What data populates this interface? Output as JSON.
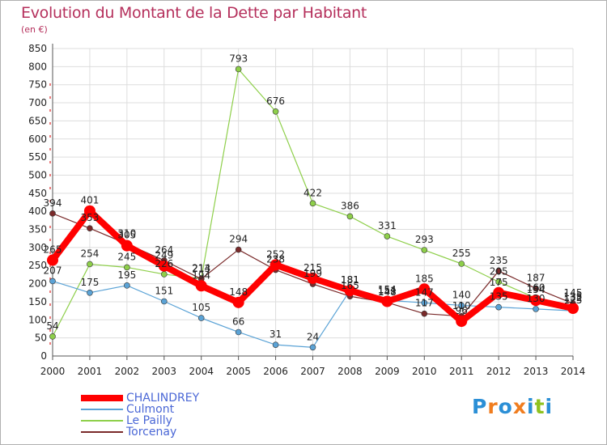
{
  "title": "Evolution du Montant de la Dette par Habitant",
  "unit": "(en €)",
  "brand": {
    "text": "Proxiti",
    "letters": [
      "P",
      "r",
      "o",
      "x",
      "i",
      "t",
      "i"
    ],
    "colors": [
      "#2b8fd6",
      "#f07d1f",
      "#2b8fd6",
      "#f07d1f",
      "#2b8fd6",
      "#8fc21f",
      "#2b8fd6"
    ]
  },
  "chart_data": {
    "type": "line",
    "title": "Evolution du Montant de la Dette par Habitant",
    "ylabel": "(en €)",
    "xlabel": "",
    "ylim": [
      0,
      850
    ],
    "yticks": [
      0,
      50,
      100,
      150,
      200,
      250,
      300,
      350,
      400,
      450,
      500,
      550,
      600,
      650,
      700,
      750,
      800,
      850
    ],
    "grid": true,
    "legend_position": "bottom-left",
    "categories": [
      "2000",
      "2001",
      "2002",
      "2003",
      "2004",
      "2005",
      "2006",
      "2007",
      "2008",
      "2009",
      "2010",
      "2011",
      "2012",
      "2013",
      "2014"
    ],
    "series": [
      {
        "name": "CHALINDREY",
        "color": "#ff0000",
        "values": [
          265,
          401,
          305,
          249,
          194,
          148,
          252,
          215,
          181,
          151,
          185,
          96,
          175,
          154,
          132
        ]
      },
      {
        "name": "Culmont",
        "color": "#5ba3d6",
        "values": [
          207,
          175,
          195,
          151,
          105,
          66,
          31,
          24,
          181,
          154,
          147,
          140,
          135,
          130,
          125
        ]
      },
      {
        "name": "Le Pailly",
        "color": "#8ecf4a",
        "values": [
          54,
          254,
          245,
          226,
          214,
          793,
          676,
          422,
          386,
          331,
          293,
          255,
          205,
          160,
          135
        ]
      },
      {
        "name": "Torcenay",
        "color": "#7a2a2a",
        "values": [
          394,
          353,
          310,
          264,
          213,
          294,
          238,
          199,
          165,
          148,
          117,
          110,
          235,
          187,
          145
        ]
      }
    ]
  }
}
